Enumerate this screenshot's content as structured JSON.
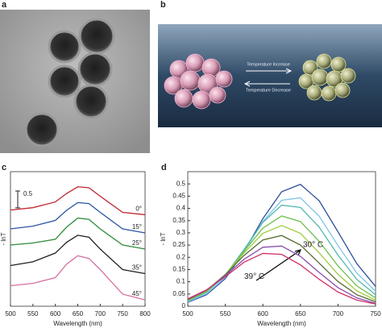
{
  "panel_labels": [
    "a",
    "b",
    "c",
    "d"
  ],
  "illustration": {
    "arrow_top": "Temperature Increase",
    "arrow_bottom": "Temperature Decrease"
  },
  "chart_data": [
    {
      "type": "line",
      "x_label": "Wavelength (nm)",
      "y_label": "- lnT",
      "x": [
        500,
        550,
        600,
        625,
        650,
        675,
        700,
        750,
        800
      ],
      "xlim": [
        500,
        800
      ],
      "xticks": [
        500,
        550,
        600,
        650,
        700,
        750,
        800
      ],
      "ylim": [
        0,
        4
      ],
      "scale_bar": 0.5,
      "series": [
        {
          "name": "0°",
          "color": "#c0262d",
          "values": [
            2.86,
            2.93,
            3.1,
            3.35,
            3.55,
            3.52,
            3.27,
            2.79,
            2.72
          ]
        },
        {
          "name": "15°",
          "color": "#2a55a5",
          "values": [
            2.3,
            2.38,
            2.55,
            2.85,
            3.08,
            3.05,
            2.79,
            2.3,
            2.18
          ]
        },
        {
          "name": "25°",
          "color": "#2e8b3c",
          "values": [
            1.82,
            1.88,
            1.99,
            2.35,
            2.62,
            2.58,
            2.3,
            1.82,
            1.7
          ]
        },
        {
          "name": "35°",
          "color": "#222222",
          "values": [
            1.21,
            1.32,
            1.58,
            1.9,
            2.11,
            2.05,
            1.7,
            1.09,
            0.97
          ]
        },
        {
          "name": "45°",
          "color": "#d36fa0",
          "values": [
            0.61,
            0.68,
            0.85,
            1.25,
            1.5,
            1.42,
            1.09,
            0.36,
            0.19
          ]
        }
      ]
    },
    {
      "type": "line",
      "x_label": "Wavelength (nm)",
      "y_label": "- lnT",
      "x": [
        500,
        525,
        550,
        575,
        600,
        625,
        650,
        675,
        700,
        725,
        750
      ],
      "xlim": [
        500,
        750
      ],
      "xticks": [
        500,
        550,
        600,
        650,
        700,
        750
      ],
      "ylim": [
        0,
        0.55
      ],
      "yticks": [
        0,
        0.05,
        0.1,
        0.15,
        0.2,
        0.25,
        0.3,
        0.35,
        0.4,
        0.45,
        0.5
      ],
      "annotations": [
        "30° C",
        "39° C"
      ],
      "series": [
        {
          "color": "#2b4c9b",
          "values": [
            0.016,
            0.047,
            0.113,
            0.223,
            0.358,
            0.468,
            0.498,
            0.431,
            0.304,
            0.174,
            0.081
          ]
        },
        {
          "color": "#7fc4e8",
          "values": [
            0.018,
            0.051,
            0.118,
            0.224,
            0.346,
            0.433,
            0.443,
            0.368,
            0.248,
            0.136,
            0.061
          ]
        },
        {
          "color": "#4fb8b0",
          "values": [
            0.021,
            0.057,
            0.127,
            0.232,
            0.343,
            0.413,
            0.404,
            0.323,
            0.209,
            0.11,
            0.047
          ]
        },
        {
          "color": "#6dbf4a",
          "values": [
            0.023,
            0.06,
            0.128,
            0.225,
            0.319,
            0.369,
            0.346,
            0.265,
            0.165,
            0.083,
            0.034
          ]
        },
        {
          "color": "#9ccc3c",
          "values": [
            0.025,
            0.063,
            0.13,
            0.218,
            0.298,
            0.33,
            0.298,
            0.218,
            0.13,
            0.063,
            0.025
          ]
        },
        {
          "color": "#556b2f",
          "values": [
            0.027,
            0.065,
            0.129,
            0.208,
            0.271,
            0.289,
            0.25,
            0.176,
            0.101,
            0.047,
            0.018
          ]
        },
        {
          "color": "#8a4fb0",
          "values": [
            0.028,
            0.066,
            0.125,
            0.192,
            0.241,
            0.246,
            0.204,
            0.138,
            0.076,
            0.034,
            0.012
          ]
        },
        {
          "color": "#d0306a",
          "values": [
            0.03,
            0.067,
            0.121,
            0.18,
            0.216,
            0.212,
            0.169,
            0.11,
            0.058,
            0.025,
            0.009
          ]
        }
      ]
    }
  ]
}
